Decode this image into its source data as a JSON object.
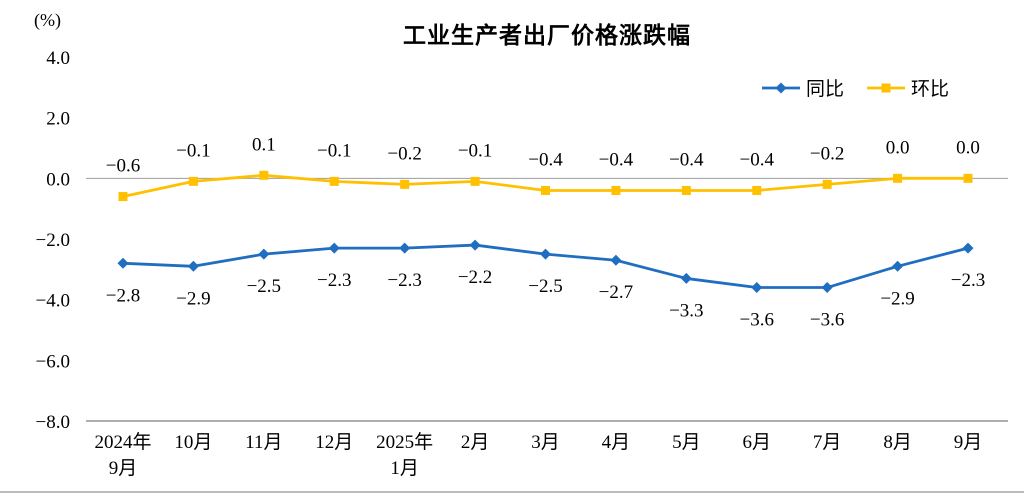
{
  "chart_data": {
    "type": "line",
    "title": "工业生产者出厂价格涨跌幅",
    "ylabel": "(%)",
    "xlabel": "",
    "categories": [
      [
        "2024年",
        "9月"
      ],
      [
        "10月"
      ],
      [
        "11月"
      ],
      [
        "12月"
      ],
      [
        "2025年",
        "1月"
      ],
      [
        "2月"
      ],
      [
        "3月"
      ],
      [
        "4月"
      ],
      [
        "5月"
      ],
      [
        "6月"
      ],
      [
        "7月"
      ],
      [
        "8月"
      ],
      [
        "9月"
      ]
    ],
    "series": [
      {
        "name": "同比",
        "color": "#1F6EC2",
        "marker": "diamond",
        "label_position": "below",
        "values": [
          -2.8,
          -2.9,
          -2.5,
          -2.3,
          -2.3,
          -2.2,
          -2.5,
          -2.7,
          -3.3,
          -3.6,
          -3.6,
          -2.9,
          -2.3
        ]
      },
      {
        "name": "环比",
        "color": "#FFC000",
        "marker": "square",
        "label_position": "above",
        "values": [
          -0.6,
          -0.1,
          0.1,
          -0.1,
          -0.2,
          -0.1,
          -0.4,
          -0.4,
          -0.4,
          -0.4,
          -0.2,
          0.0,
          0.0
        ]
      }
    ],
    "ylim": [
      -8.0,
      4.0
    ],
    "ytick_step": 2.0,
    "legend_position": "top-right",
    "grid": false,
    "axis_text_color": "#000000",
    "zero_line_color": "#9d9d9d",
    "axis_line_color": "#7f7f7f"
  }
}
